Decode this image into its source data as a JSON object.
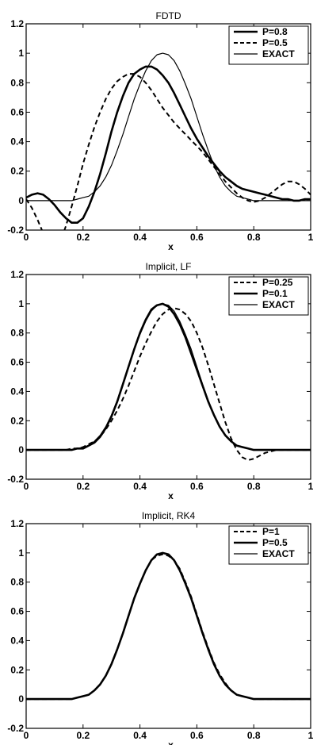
{
  "chart_data": [
    {
      "type": "line",
      "title": "FDTD",
      "xlabel": "x",
      "ylabel": "",
      "xlim": [
        0,
        1
      ],
      "ylim": [
        -0.2,
        1.2
      ],
      "xticks": [
        "0",
        "0.2",
        "0.4",
        "0.6",
        "0.8",
        "1"
      ],
      "yticks": [
        "-0.2",
        "0",
        "0.2",
        "0.4",
        "0.6",
        "0.8",
        "1",
        "1.2"
      ],
      "legend": "top-right",
      "series": [
        {
          "name": "P=0.8",
          "style": "thick",
          "x": [
            0.0,
            0.02,
            0.04,
            0.06,
            0.08,
            0.1,
            0.12,
            0.14,
            0.16,
            0.18,
            0.2,
            0.22,
            0.24,
            0.26,
            0.28,
            0.3,
            0.32,
            0.34,
            0.36,
            0.38,
            0.4,
            0.42,
            0.44,
            0.46,
            0.48,
            0.5,
            0.52,
            0.54,
            0.56,
            0.58,
            0.6,
            0.62,
            0.64,
            0.66,
            0.68,
            0.7,
            0.72,
            0.74,
            0.76,
            0.78,
            0.8,
            0.82,
            0.84,
            0.86,
            0.88,
            0.9,
            0.92,
            0.94,
            0.96,
            0.98,
            1.0
          ],
          "y": [
            0.02,
            0.04,
            0.05,
            0.04,
            0.01,
            -0.03,
            -0.08,
            -0.12,
            -0.15,
            -0.15,
            -0.12,
            -0.04,
            0.06,
            0.18,
            0.32,
            0.47,
            0.6,
            0.71,
            0.8,
            0.86,
            0.89,
            0.91,
            0.91,
            0.89,
            0.85,
            0.8,
            0.73,
            0.65,
            0.57,
            0.49,
            0.42,
            0.36,
            0.3,
            0.25,
            0.2,
            0.16,
            0.13,
            0.1,
            0.08,
            0.07,
            0.06,
            0.05,
            0.04,
            0.03,
            0.02,
            0.01,
            0.01,
            0.0,
            0.0,
            0.01,
            0.01
          ]
        },
        {
          "name": "P=0.5",
          "style": "dashed",
          "x": [
            0.0,
            0.02,
            0.04,
            0.06,
            0.08,
            0.1,
            0.12,
            0.14,
            0.16,
            0.18,
            0.2,
            0.22,
            0.24,
            0.26,
            0.28,
            0.3,
            0.32,
            0.34,
            0.36,
            0.38,
            0.4,
            0.42,
            0.44,
            0.46,
            0.48,
            0.5,
            0.52,
            0.54,
            0.56,
            0.58,
            0.6,
            0.62,
            0.64,
            0.66,
            0.68,
            0.7,
            0.72,
            0.74,
            0.76,
            0.78,
            0.8,
            0.82,
            0.84,
            0.86,
            0.88,
            0.9,
            0.92,
            0.94,
            0.96,
            0.98,
            1.0
          ],
          "y": [
            0.01,
            -0.05,
            -0.13,
            -0.22,
            -0.3,
            -0.33,
            -0.28,
            -0.17,
            -0.04,
            0.1,
            0.25,
            0.38,
            0.5,
            0.6,
            0.69,
            0.76,
            0.81,
            0.84,
            0.86,
            0.86,
            0.84,
            0.8,
            0.75,
            0.69,
            0.63,
            0.58,
            0.53,
            0.49,
            0.45,
            0.41,
            0.37,
            0.33,
            0.28,
            0.23,
            0.18,
            0.13,
            0.09,
            0.05,
            0.02,
            0.0,
            -0.01,
            0.0,
            0.02,
            0.05,
            0.08,
            0.11,
            0.13,
            0.13,
            0.11,
            0.08,
            0.04
          ]
        },
        {
          "name": "EXACT",
          "style": "thin",
          "x": [
            0.0,
            0.02,
            0.04,
            0.06,
            0.08,
            0.1,
            0.12,
            0.14,
            0.16,
            0.18,
            0.2,
            0.22,
            0.24,
            0.26,
            0.28,
            0.3,
            0.32,
            0.34,
            0.36,
            0.38,
            0.4,
            0.42,
            0.44,
            0.46,
            0.48,
            0.5,
            0.52,
            0.54,
            0.56,
            0.58,
            0.6,
            0.62,
            0.64,
            0.66,
            0.68,
            0.7,
            0.72,
            0.74,
            0.76,
            0.78,
            0.8,
            0.82,
            0.84,
            0.86,
            0.88,
            0.9,
            0.92,
            0.94,
            0.96,
            0.98,
            1.0
          ],
          "y": [
            0.0,
            0.0,
            0.0,
            0.0,
            0.0,
            0.0,
            0.0,
            0.0,
            0.0,
            0.01,
            0.02,
            0.03,
            0.06,
            0.1,
            0.16,
            0.24,
            0.34,
            0.45,
            0.57,
            0.69,
            0.79,
            0.88,
            0.95,
            0.99,
            1.0,
            0.99,
            0.95,
            0.88,
            0.79,
            0.69,
            0.57,
            0.45,
            0.34,
            0.24,
            0.16,
            0.1,
            0.06,
            0.03,
            0.02,
            0.01,
            0.0,
            0.0,
            0.0,
            0.0,
            0.0,
            0.0,
            0.0,
            0.0,
            0.0,
            0.0,
            0.0
          ]
        }
      ]
    },
    {
      "type": "line",
      "title": "Implicit, LF",
      "xlabel": "x",
      "ylabel": "",
      "xlim": [
        0,
        1
      ],
      "ylim": [
        -0.2,
        1.2
      ],
      "xticks": [
        "0",
        "0.2",
        "0.4",
        "0.6",
        "0.8",
        "1"
      ],
      "yticks": [
        "-0.2",
        "0",
        "0.2",
        "0.4",
        "0.6",
        "0.8",
        "1",
        "1.2"
      ],
      "legend": "top-right",
      "series": [
        {
          "name": "P=0.25",
          "style": "dashed",
          "x": [
            0.0,
            0.02,
            0.04,
            0.06,
            0.08,
            0.1,
            0.12,
            0.14,
            0.16,
            0.18,
            0.2,
            0.22,
            0.24,
            0.26,
            0.28,
            0.3,
            0.32,
            0.34,
            0.36,
            0.38,
            0.4,
            0.42,
            0.44,
            0.46,
            0.48,
            0.5,
            0.52,
            0.54,
            0.56,
            0.58,
            0.6,
            0.62,
            0.64,
            0.66,
            0.68,
            0.7,
            0.72,
            0.74,
            0.76,
            0.78,
            0.8,
            0.82,
            0.84,
            0.86,
            0.88,
            0.9,
            0.92,
            0.94,
            0.96,
            0.98,
            1.0
          ],
          "y": [
            0.0,
            0.0,
            0.0,
            0.0,
            0.0,
            0.0,
            0.0,
            0.0,
            0.01,
            0.01,
            0.02,
            0.04,
            0.06,
            0.09,
            0.14,
            0.2,
            0.27,
            0.35,
            0.44,
            0.54,
            0.64,
            0.73,
            0.81,
            0.88,
            0.93,
            0.96,
            0.97,
            0.96,
            0.93,
            0.88,
            0.8,
            0.7,
            0.58,
            0.45,
            0.32,
            0.19,
            0.08,
            0.0,
            -0.05,
            -0.07,
            -0.06,
            -0.04,
            -0.02,
            -0.01,
            0.0,
            0.0,
            0.0,
            0.0,
            0.0,
            0.0,
            0.0
          ]
        },
        {
          "name": "P=0.1",
          "style": "thick",
          "x": [
            0.0,
            0.02,
            0.04,
            0.06,
            0.08,
            0.1,
            0.12,
            0.14,
            0.16,
            0.18,
            0.2,
            0.22,
            0.24,
            0.26,
            0.28,
            0.3,
            0.32,
            0.34,
            0.36,
            0.38,
            0.4,
            0.42,
            0.44,
            0.46,
            0.48,
            0.5,
            0.52,
            0.54,
            0.56,
            0.58,
            0.6,
            0.62,
            0.64,
            0.66,
            0.68,
            0.7,
            0.72,
            0.74,
            0.76,
            0.78,
            0.8,
            0.82,
            0.84,
            0.86,
            0.88,
            0.9,
            0.92,
            0.94,
            0.96,
            0.98,
            1.0
          ],
          "y": [
            0.0,
            0.0,
            0.0,
            0.0,
            0.0,
            0.0,
            0.0,
            0.0,
            0.0,
            0.01,
            0.01,
            0.03,
            0.05,
            0.09,
            0.15,
            0.23,
            0.33,
            0.45,
            0.57,
            0.69,
            0.8,
            0.89,
            0.96,
            0.99,
            1.0,
            0.98,
            0.93,
            0.86,
            0.77,
            0.66,
            0.55,
            0.44,
            0.33,
            0.24,
            0.16,
            0.1,
            0.06,
            0.03,
            0.02,
            0.01,
            0.0,
            0.0,
            0.0,
            0.0,
            0.0,
            0.0,
            0.0,
            0.0,
            0.0,
            0.0,
            0.0
          ]
        },
        {
          "name": "EXACT",
          "style": "thin",
          "x": [
            0.0,
            0.02,
            0.04,
            0.06,
            0.08,
            0.1,
            0.12,
            0.14,
            0.16,
            0.18,
            0.2,
            0.22,
            0.24,
            0.26,
            0.28,
            0.3,
            0.32,
            0.34,
            0.36,
            0.38,
            0.4,
            0.42,
            0.44,
            0.46,
            0.48,
            0.5,
            0.52,
            0.54,
            0.56,
            0.58,
            0.6,
            0.62,
            0.64,
            0.66,
            0.68,
            0.7,
            0.72,
            0.74,
            0.76,
            0.78,
            0.8,
            0.82,
            0.84,
            0.86,
            0.88,
            0.9,
            0.92,
            0.94,
            0.96,
            0.98,
            1.0
          ],
          "y": [
            0.0,
            0.0,
            0.0,
            0.0,
            0.0,
            0.0,
            0.0,
            0.0,
            0.0,
            0.01,
            0.02,
            0.03,
            0.06,
            0.1,
            0.16,
            0.24,
            0.34,
            0.45,
            0.57,
            0.69,
            0.79,
            0.88,
            0.95,
            0.99,
            1.0,
            0.99,
            0.95,
            0.88,
            0.79,
            0.69,
            0.57,
            0.45,
            0.34,
            0.24,
            0.16,
            0.1,
            0.06,
            0.03,
            0.02,
            0.01,
            0.0,
            0.0,
            0.0,
            0.0,
            0.0,
            0.0,
            0.0,
            0.0,
            0.0,
            0.0,
            0.0
          ]
        }
      ]
    },
    {
      "type": "line",
      "title": "Implicit, RK4",
      "xlabel": "x",
      "ylabel": "",
      "xlim": [
        0,
        1
      ],
      "ylim": [
        -0.2,
        1.2
      ],
      "xticks": [
        "0",
        "0.2",
        "0.4",
        "0.6",
        "0.8",
        "1"
      ],
      "yticks": [
        "-0.2",
        "0",
        "0.2",
        "0.4",
        "0.6",
        "0.8",
        "1",
        "1.2"
      ],
      "legend": "top-right",
      "series": [
        {
          "name": "P=1",
          "style": "dashed",
          "x": [
            0.0,
            0.02,
            0.04,
            0.06,
            0.08,
            0.1,
            0.12,
            0.14,
            0.16,
            0.18,
            0.2,
            0.22,
            0.24,
            0.26,
            0.28,
            0.3,
            0.32,
            0.34,
            0.36,
            0.38,
            0.4,
            0.42,
            0.44,
            0.46,
            0.48,
            0.5,
            0.52,
            0.54,
            0.56,
            0.58,
            0.6,
            0.62,
            0.64,
            0.66,
            0.68,
            0.7,
            0.72,
            0.74,
            0.76,
            0.78,
            0.8,
            0.82,
            0.84,
            0.86,
            0.88,
            0.9,
            0.92,
            0.94,
            0.96,
            0.98,
            1.0
          ],
          "y": [
            0.0,
            0.0,
            0.0,
            0.0,
            0.0,
            0.0,
            0.0,
            0.0,
            0.0,
            0.01,
            0.02,
            0.03,
            0.06,
            0.1,
            0.16,
            0.24,
            0.34,
            0.45,
            0.57,
            0.69,
            0.79,
            0.88,
            0.95,
            0.98,
            0.99,
            0.98,
            0.95,
            0.89,
            0.8,
            0.7,
            0.58,
            0.46,
            0.35,
            0.25,
            0.17,
            0.11,
            0.06,
            0.03,
            0.02,
            0.01,
            0.0,
            0.0,
            0.0,
            0.0,
            0.0,
            0.0,
            0.0,
            0.0,
            0.0,
            0.0,
            0.0
          ]
        },
        {
          "name": "P=0.5",
          "style": "thick",
          "x": [
            0.0,
            0.02,
            0.04,
            0.06,
            0.08,
            0.1,
            0.12,
            0.14,
            0.16,
            0.18,
            0.2,
            0.22,
            0.24,
            0.26,
            0.28,
            0.3,
            0.32,
            0.34,
            0.36,
            0.38,
            0.4,
            0.42,
            0.44,
            0.46,
            0.48,
            0.5,
            0.52,
            0.54,
            0.56,
            0.58,
            0.6,
            0.62,
            0.64,
            0.66,
            0.68,
            0.7,
            0.72,
            0.74,
            0.76,
            0.78,
            0.8,
            0.82,
            0.84,
            0.86,
            0.88,
            0.9,
            0.92,
            0.94,
            0.96,
            0.98,
            1.0
          ],
          "y": [
            0.0,
            0.0,
            0.0,
            0.0,
            0.0,
            0.0,
            0.0,
            0.0,
            0.0,
            0.01,
            0.02,
            0.03,
            0.06,
            0.1,
            0.16,
            0.24,
            0.34,
            0.45,
            0.57,
            0.69,
            0.79,
            0.88,
            0.95,
            0.99,
            1.0,
            0.99,
            0.95,
            0.88,
            0.79,
            0.69,
            0.57,
            0.45,
            0.34,
            0.24,
            0.16,
            0.1,
            0.06,
            0.03,
            0.02,
            0.01,
            0.0,
            0.0,
            0.0,
            0.0,
            0.0,
            0.0,
            0.0,
            0.0,
            0.0,
            0.0,
            0.0
          ]
        },
        {
          "name": "EXACT",
          "style": "thin",
          "x": [
            0.0,
            0.02,
            0.04,
            0.06,
            0.08,
            0.1,
            0.12,
            0.14,
            0.16,
            0.18,
            0.2,
            0.22,
            0.24,
            0.26,
            0.28,
            0.3,
            0.32,
            0.34,
            0.36,
            0.38,
            0.4,
            0.42,
            0.44,
            0.46,
            0.48,
            0.5,
            0.52,
            0.54,
            0.56,
            0.58,
            0.6,
            0.62,
            0.64,
            0.66,
            0.68,
            0.7,
            0.72,
            0.74,
            0.76,
            0.78,
            0.8,
            0.82,
            0.84,
            0.86,
            0.88,
            0.9,
            0.92,
            0.94,
            0.96,
            0.98,
            1.0
          ],
          "y": [
            0.0,
            0.0,
            0.0,
            0.0,
            0.0,
            0.0,
            0.0,
            0.0,
            0.0,
            0.01,
            0.02,
            0.03,
            0.06,
            0.1,
            0.16,
            0.24,
            0.34,
            0.45,
            0.57,
            0.69,
            0.79,
            0.88,
            0.95,
            0.99,
            1.0,
            0.99,
            0.95,
            0.88,
            0.79,
            0.69,
            0.57,
            0.45,
            0.34,
            0.24,
            0.16,
            0.1,
            0.06,
            0.03,
            0.02,
            0.01,
            0.0,
            0.0,
            0.0,
            0.0,
            0.0,
            0.0,
            0.0,
            0.0,
            0.0,
            0.0,
            0.0
          ]
        }
      ]
    }
  ]
}
